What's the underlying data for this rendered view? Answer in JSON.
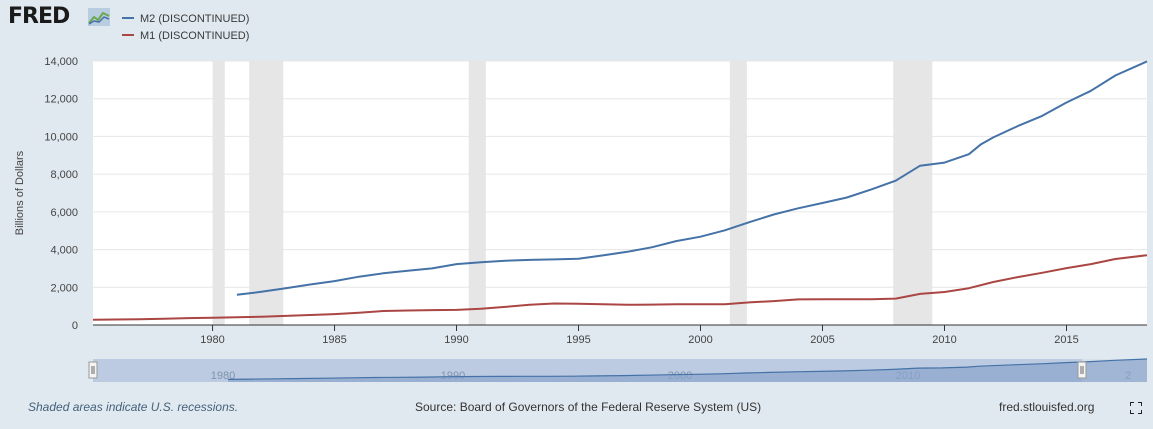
{
  "logo": {
    "text": "FRED"
  },
  "legend": [
    {
      "name": "M2 (DISCONTINUED)",
      "color": "#4572a7"
    },
    {
      "name": "M1 (DISCONTINUED)",
      "color": "#aa4643"
    }
  ],
  "footer": {
    "note": "Shaded areas indicate U.S. recessions.",
    "source": "Source: Board of Governors of the Federal Reserve System (US)",
    "site": "fred.stlouisfed.org"
  },
  "navigator": {
    "labels": [
      "1980",
      "1990",
      "2000",
      "2010",
      "2"
    ]
  },
  "chart_data": {
    "type": "line",
    "title": "",
    "ylabel": "Billions of Dollars",
    "xlim": [
      1975.1,
      2018.3
    ],
    "ylim": [
      0,
      14000
    ],
    "x_ticks": [
      1980,
      1985,
      1990,
      1995,
      2000,
      2005,
      2010,
      2015
    ],
    "y_ticks": [
      0,
      2000,
      4000,
      6000,
      8000,
      10000,
      12000,
      14000
    ],
    "y_tick_labels": [
      "0",
      "2,000",
      "4,000",
      "6,000",
      "8,000",
      "10,000",
      "12,000",
      "14,000"
    ],
    "grid": "horizontal",
    "recessions": [
      [
        1980.0,
        1980.5
      ],
      [
        1981.5,
        1982.9
      ],
      [
        1990.5,
        1991.2
      ],
      [
        2001.2,
        2001.9
      ],
      [
        2007.9,
        2009.5
      ]
    ],
    "series": [
      {
        "name": "M2 (DISCONTINUED)",
        "color": "#4572a7",
        "points": [
          [
            1981.0,
            1600
          ],
          [
            1982.0,
            1760
          ],
          [
            1983.0,
            1950
          ],
          [
            1984.0,
            2150
          ],
          [
            1985.0,
            2330
          ],
          [
            1986.0,
            2560
          ],
          [
            1987.0,
            2740
          ],
          [
            1988.0,
            2880
          ],
          [
            1989.0,
            3000
          ],
          [
            1990.0,
            3230
          ],
          [
            1991.0,
            3330
          ],
          [
            1992.0,
            3410
          ],
          [
            1993.0,
            3450
          ],
          [
            1994.0,
            3480
          ],
          [
            1995.0,
            3510
          ],
          [
            1996.0,
            3690
          ],
          [
            1997.0,
            3880
          ],
          [
            1998.0,
            4120
          ],
          [
            1999.0,
            4450
          ],
          [
            2000.0,
            4680
          ],
          [
            2001.0,
            5020
          ],
          [
            2002.0,
            5450
          ],
          [
            2003.0,
            5860
          ],
          [
            2004.0,
            6190
          ],
          [
            2005.0,
            6470
          ],
          [
            2006.0,
            6760
          ],
          [
            2007.0,
            7190
          ],
          [
            2008.0,
            7650
          ],
          [
            2009.0,
            8450
          ],
          [
            2010.0,
            8610
          ],
          [
            2011.0,
            9060
          ],
          [
            2011.5,
            9590
          ],
          [
            2012.0,
            9950
          ],
          [
            2013.0,
            10550
          ],
          [
            2014.0,
            11090
          ],
          [
            2015.0,
            11800
          ],
          [
            2016.0,
            12420
          ],
          [
            2017.0,
            13230
          ],
          [
            2018.3,
            13980
          ]
        ]
      },
      {
        "name": "M1 (DISCONTINUED)",
        "color": "#aa4643",
        "points": [
          [
            1975.1,
            275
          ],
          [
            1976.0,
            290
          ],
          [
            1977.0,
            310
          ],
          [
            1978.0,
            335
          ],
          [
            1979.0,
            365
          ],
          [
            1980.0,
            385
          ],
          [
            1981.0,
            410
          ],
          [
            1982.0,
            440
          ],
          [
            1983.0,
            480
          ],
          [
            1984.0,
            530
          ],
          [
            1985.0,
            580
          ],
          [
            1986.0,
            650
          ],
          [
            1987.0,
            740
          ],
          [
            1988.0,
            770
          ],
          [
            1989.0,
            790
          ],
          [
            1990.0,
            800
          ],
          [
            1991.0,
            860
          ],
          [
            1992.0,
            960
          ],
          [
            1993.0,
            1070
          ],
          [
            1994.0,
            1140
          ],
          [
            1995.0,
            1130
          ],
          [
            1996.0,
            1100
          ],
          [
            1997.0,
            1070
          ],
          [
            1998.0,
            1080
          ],
          [
            1999.0,
            1100
          ],
          [
            2000.0,
            1100
          ],
          [
            2001.0,
            1100
          ],
          [
            2002.0,
            1200
          ],
          [
            2003.0,
            1270
          ],
          [
            2004.0,
            1360
          ],
          [
            2005.0,
            1370
          ],
          [
            2006.0,
            1370
          ],
          [
            2007.0,
            1370
          ],
          [
            2008.0,
            1400
          ],
          [
            2009.0,
            1650
          ],
          [
            2010.0,
            1750
          ],
          [
            2011.0,
            1950
          ],
          [
            2012.0,
            2280
          ],
          [
            2013.0,
            2540
          ],
          [
            2014.0,
            2770
          ],
          [
            2015.0,
            3020
          ],
          [
            2016.0,
            3230
          ],
          [
            2017.0,
            3500
          ],
          [
            2018.3,
            3700
          ]
        ]
      }
    ]
  }
}
